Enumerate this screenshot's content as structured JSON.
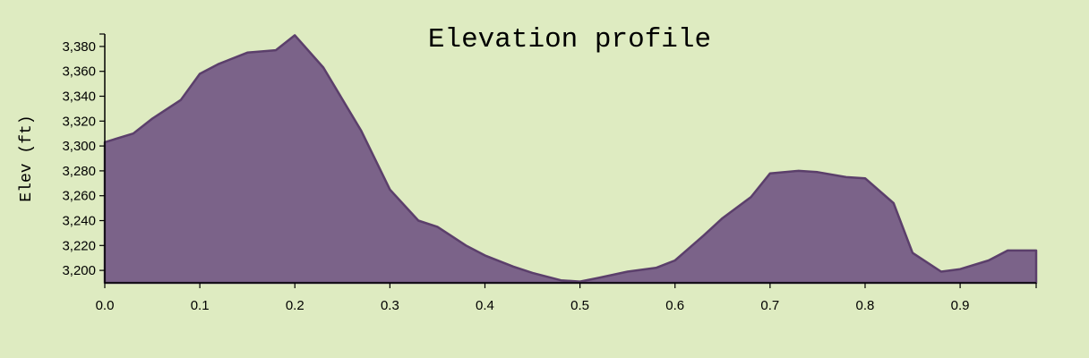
{
  "chart_data": {
    "type": "area",
    "title": "Elevation profile",
    "xlabel": "",
    "ylabel": "Elev (ft)",
    "xlim": [
      0,
      0.98
    ],
    "ylim": [
      3190,
      3390
    ],
    "x_ticks": [
      0.0,
      0.1,
      0.2,
      0.3,
      0.4,
      0.5,
      0.6,
      0.7,
      0.8,
      0.9
    ],
    "x_tick_labels": [
      "0.0",
      "0.1",
      "0.2",
      "0.3",
      "0.4",
      "0.5",
      "0.6",
      "0.7",
      "0.8",
      "0.9"
    ],
    "y_ticks": [
      3200,
      3220,
      3240,
      3260,
      3280,
      3300,
      3320,
      3340,
      3360,
      3380
    ],
    "y_tick_labels": [
      "3,200",
      "3,220",
      "3,240",
      "3,260",
      "3,280",
      "3,300",
      "3,320",
      "3,340",
      "3,360",
      "3,380"
    ],
    "grid": false,
    "legend": "none",
    "colors": {
      "background": "#deebc1",
      "fill": "#7b6389",
      "stroke": "#5b3f6b",
      "axis": "#000000"
    },
    "series": [
      {
        "x": [
          0.0,
          0.03,
          0.05,
          0.08,
          0.1,
          0.12,
          0.15,
          0.18,
          0.2,
          0.23,
          0.27,
          0.3,
          0.33,
          0.35,
          0.38,
          0.4,
          0.43,
          0.45,
          0.48,
          0.5,
          0.52,
          0.55,
          0.58,
          0.6,
          0.63,
          0.65,
          0.68,
          0.7,
          0.73,
          0.75,
          0.78,
          0.8,
          0.83,
          0.85,
          0.88,
          0.9,
          0.93,
          0.95,
          0.98
        ],
        "values": [
          3303,
          3310,
          3322,
          3337,
          3358,
          3366,
          3375,
          3377,
          3389,
          3363,
          3312,
          3265,
          3240,
          3235,
          3220,
          3212,
          3203,
          3198,
          3192,
          3191,
          3194,
          3199,
          3202,
          3208,
          3228,
          3242,
          3259,
          3278,
          3280,
          3279,
          3275,
          3274,
          3254,
          3214,
          3199,
          3201,
          3208,
          3216,
          3216
        ]
      }
    ]
  }
}
